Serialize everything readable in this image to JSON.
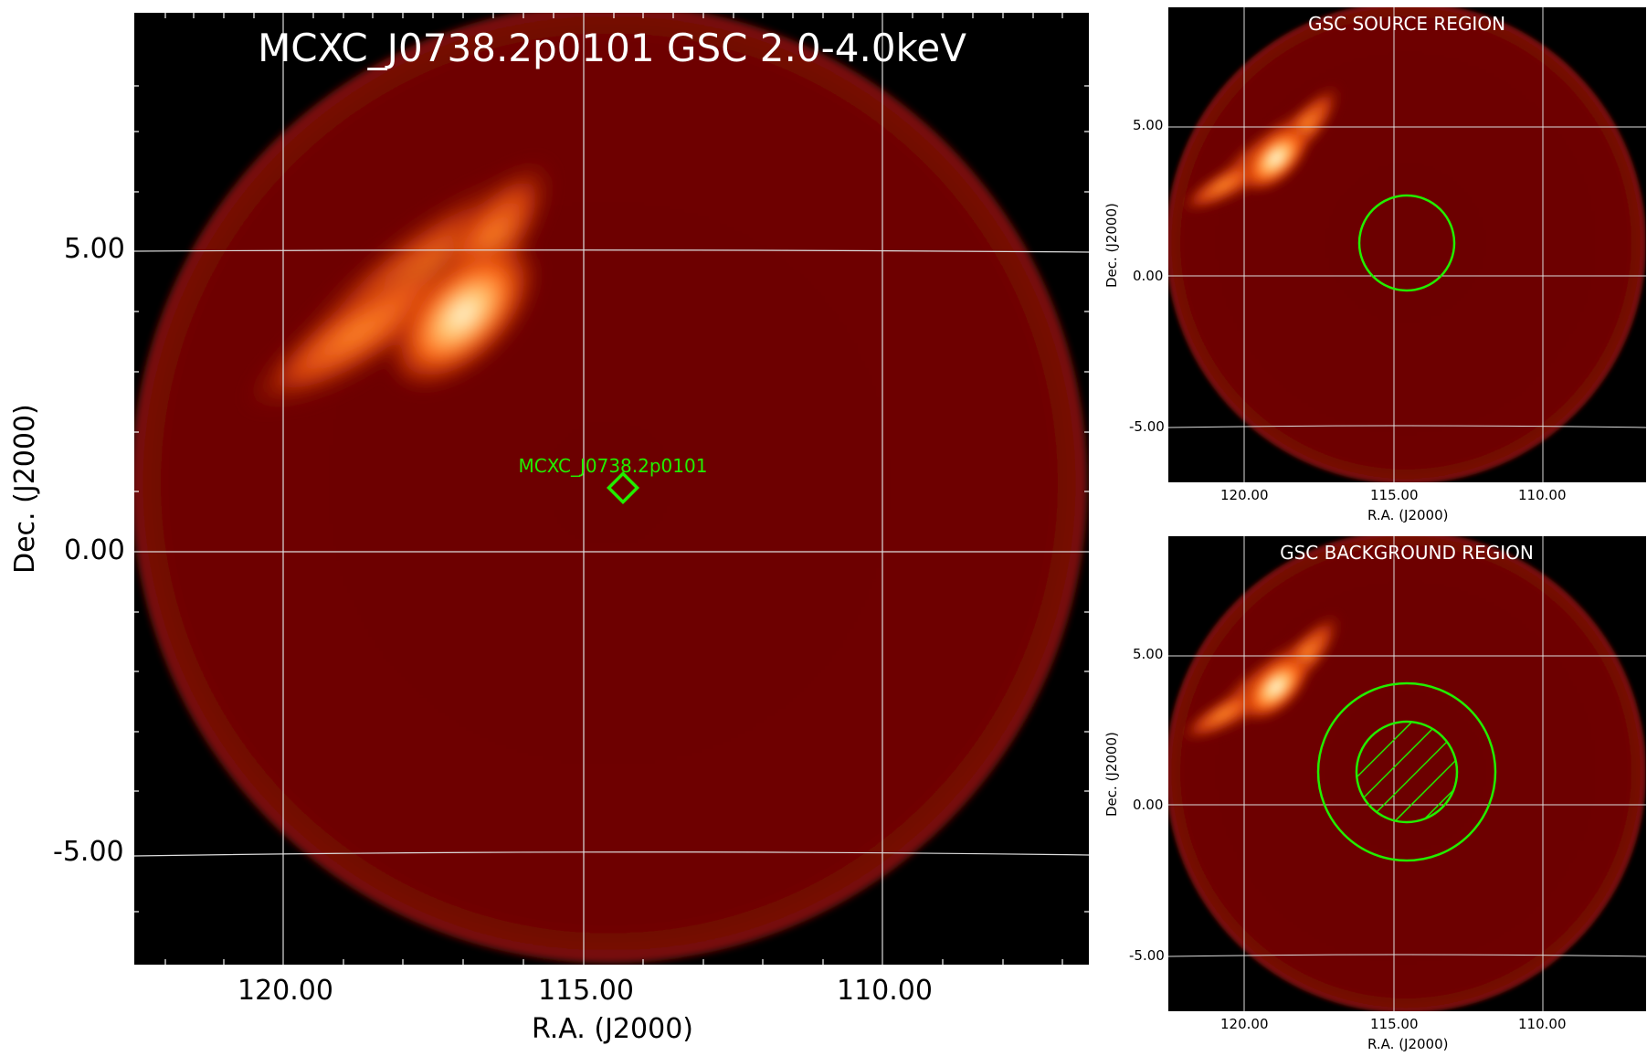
{
  "main_panel": {
    "title": "MCXC_J0738.2p0101 GSC 2.0-4.0keV",
    "xlabel": "R.A. (J2000)",
    "ylabel": "Dec. (J2000)",
    "x_ticks": [
      "120.00",
      "115.00",
      "110.00"
    ],
    "y_ticks": [
      "5.00",
      "0.00",
      "-5.00"
    ],
    "marker_label": "MCXC_J0738.2p0101",
    "marker_color": "#22ee00"
  },
  "source_panel": {
    "title": "GSC SOURCE REGION",
    "xlabel": "R.A. (J2000)",
    "ylabel": "Dec. (J2000)",
    "x_ticks": [
      "120.00",
      "115.00",
      "110.00"
    ],
    "y_ticks": [
      "5.00",
      "0.00",
      "-5.00"
    ]
  },
  "background_panel": {
    "title": "GSC BACKGROUND REGION",
    "xlabel": "R.A. (J2000)",
    "ylabel": "Dec. (J2000)",
    "x_ticks": [
      "120.00",
      "115.00",
      "110.00"
    ],
    "y_ticks": [
      "5.00",
      "0.00",
      "-5.00"
    ]
  },
  "colors": {
    "background": "#000000",
    "field": "#6e0000",
    "region": "#22ee00",
    "grid": "#dddddd"
  }
}
